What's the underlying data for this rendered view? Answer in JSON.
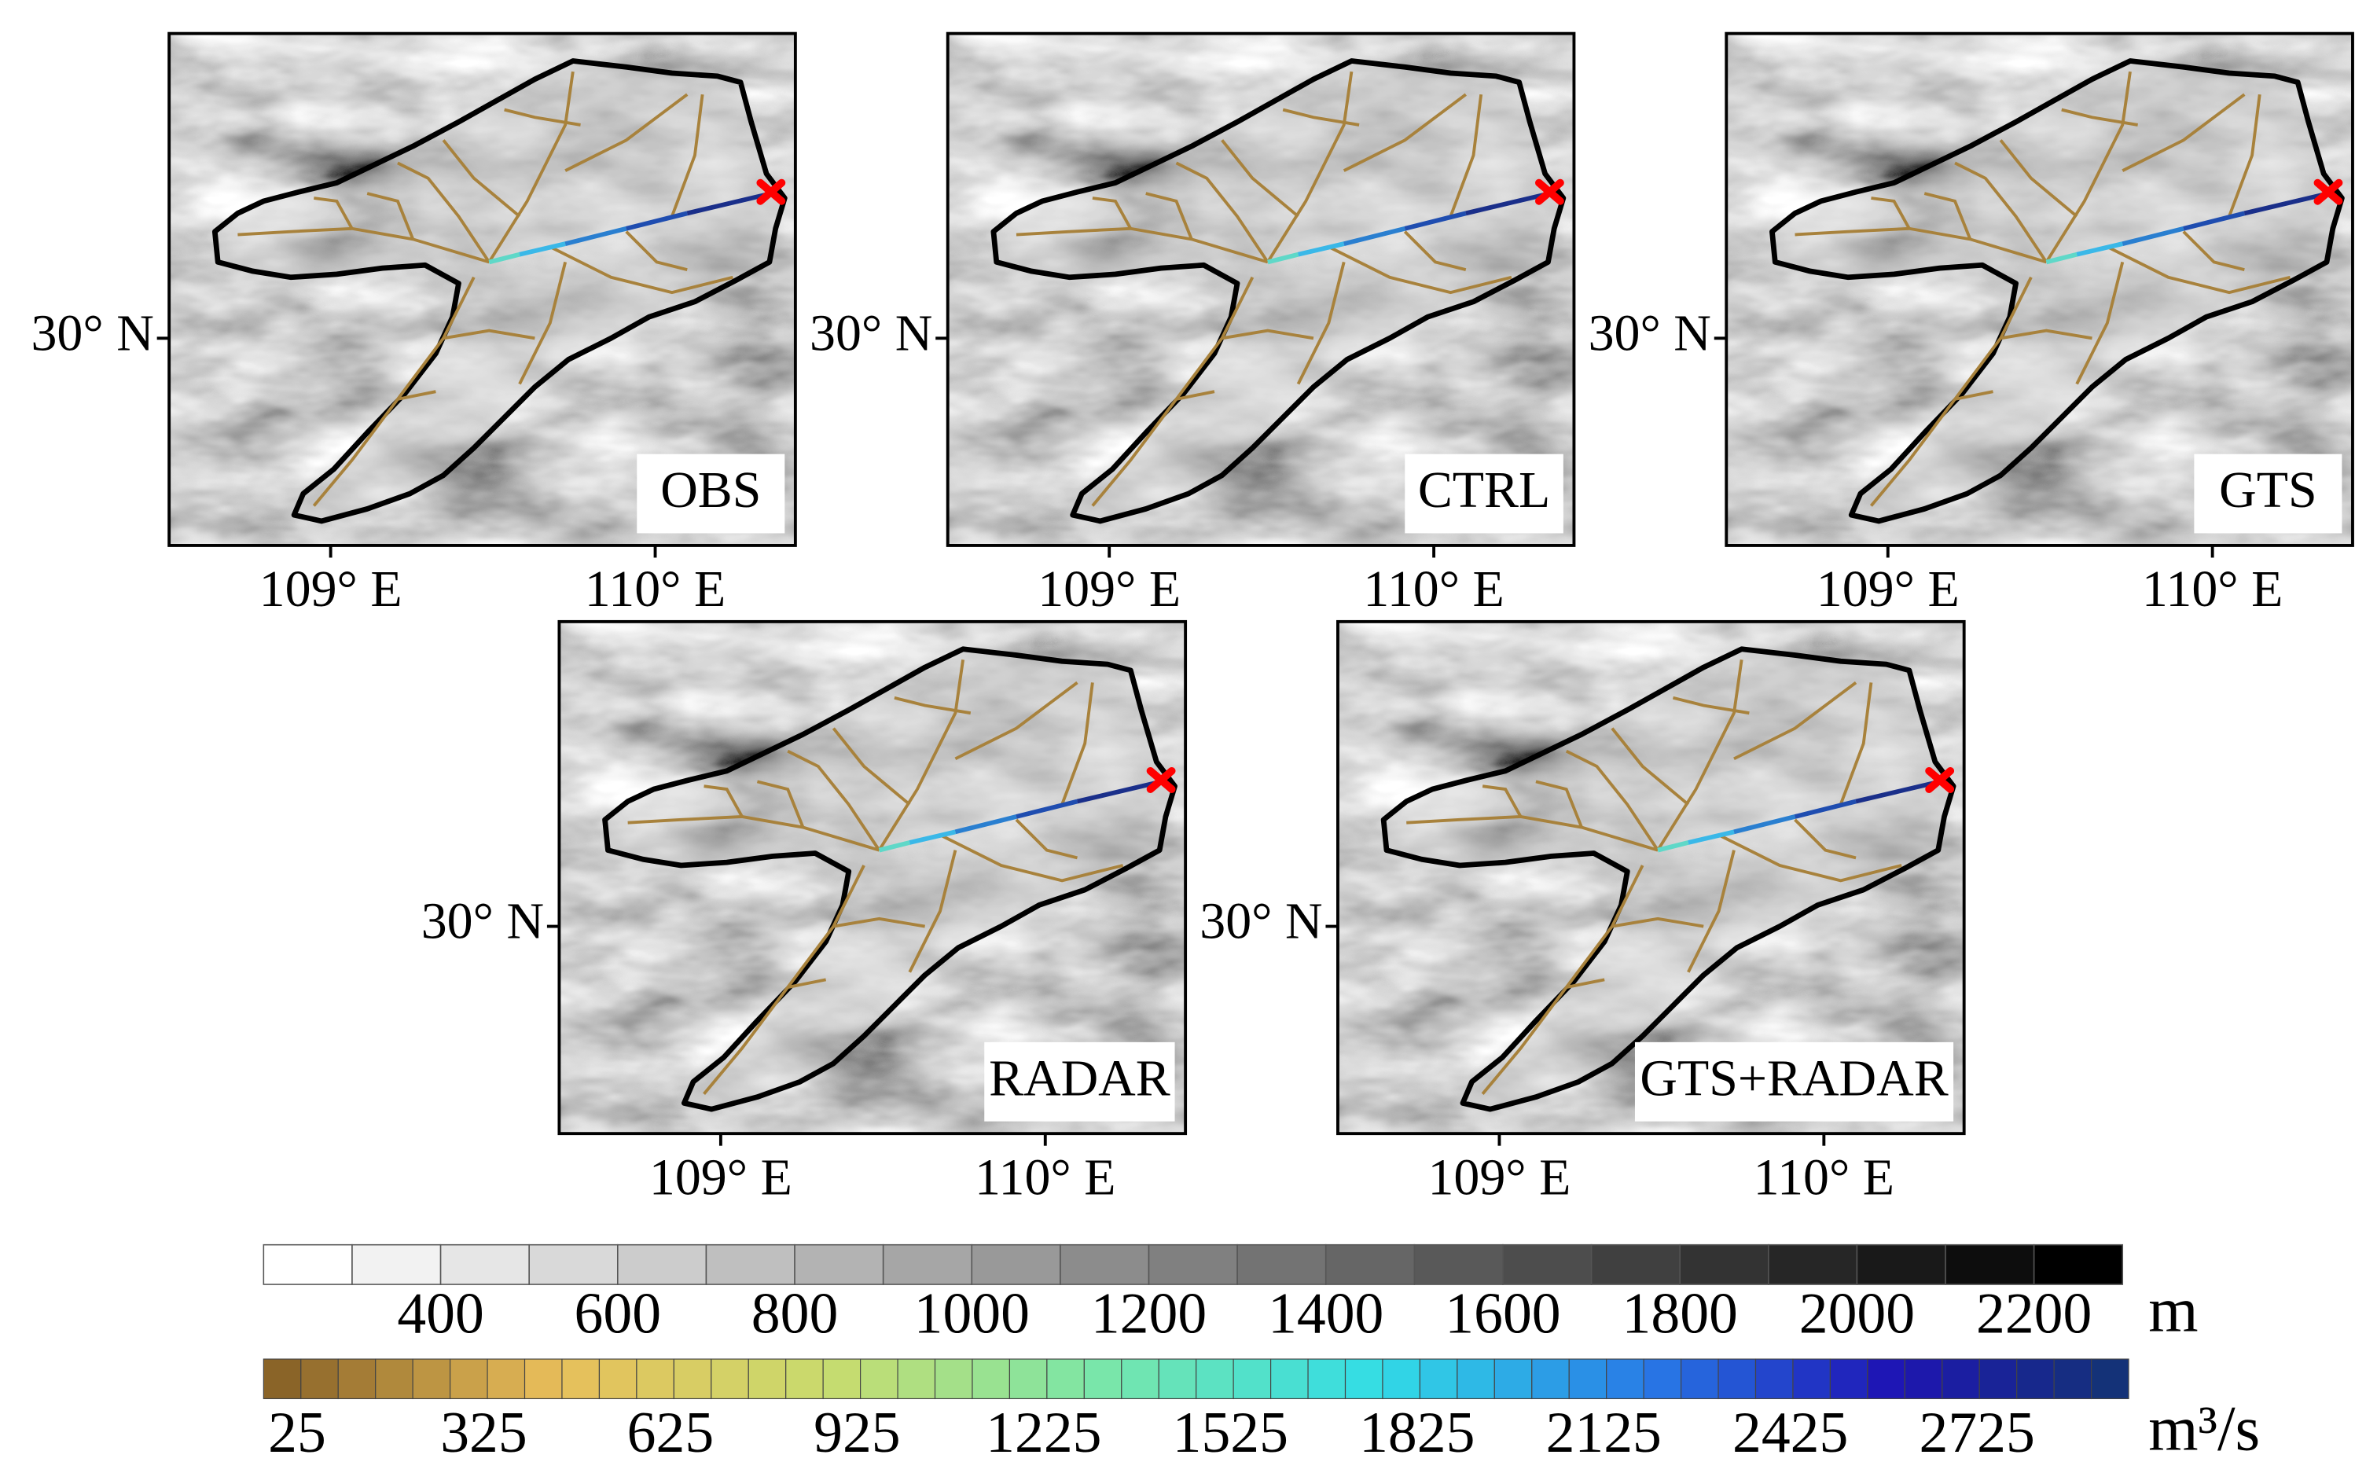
{
  "panels": [
    {
      "label": "OBS",
      "lat_label": "30° N",
      "lon_labels": [
        "109° E",
        "110° E"
      ]
    },
    {
      "label": "CTRL",
      "lat_label": "30° N",
      "lon_labels": [
        "109° E",
        "110° E"
      ]
    },
    {
      "label": "GTS",
      "lat_label": "30° N",
      "lon_labels": [
        "109° E",
        "110° E"
      ]
    },
    {
      "label": "RADAR",
      "lat_label": "30° N",
      "lon_labels": [
        "109° E",
        "110° E"
      ]
    },
    {
      "label": "GTS+RADAR",
      "lat_label": "30° N",
      "lon_labels": [
        "109° E",
        "110° E"
      ]
    }
  ],
  "colorbars": [
    {
      "unit": "m",
      "ticks": [
        "400",
        "600",
        "800",
        "1000",
        "1200",
        "1400",
        "1600",
        "1800",
        "2000",
        "2200"
      ]
    },
    {
      "unit": "m³/s",
      "ticks": [
        "25",
        "325",
        "625",
        "925",
        "1225",
        "1525",
        "1825",
        "2125",
        "2425",
        "2725"
      ]
    }
  ]
}
